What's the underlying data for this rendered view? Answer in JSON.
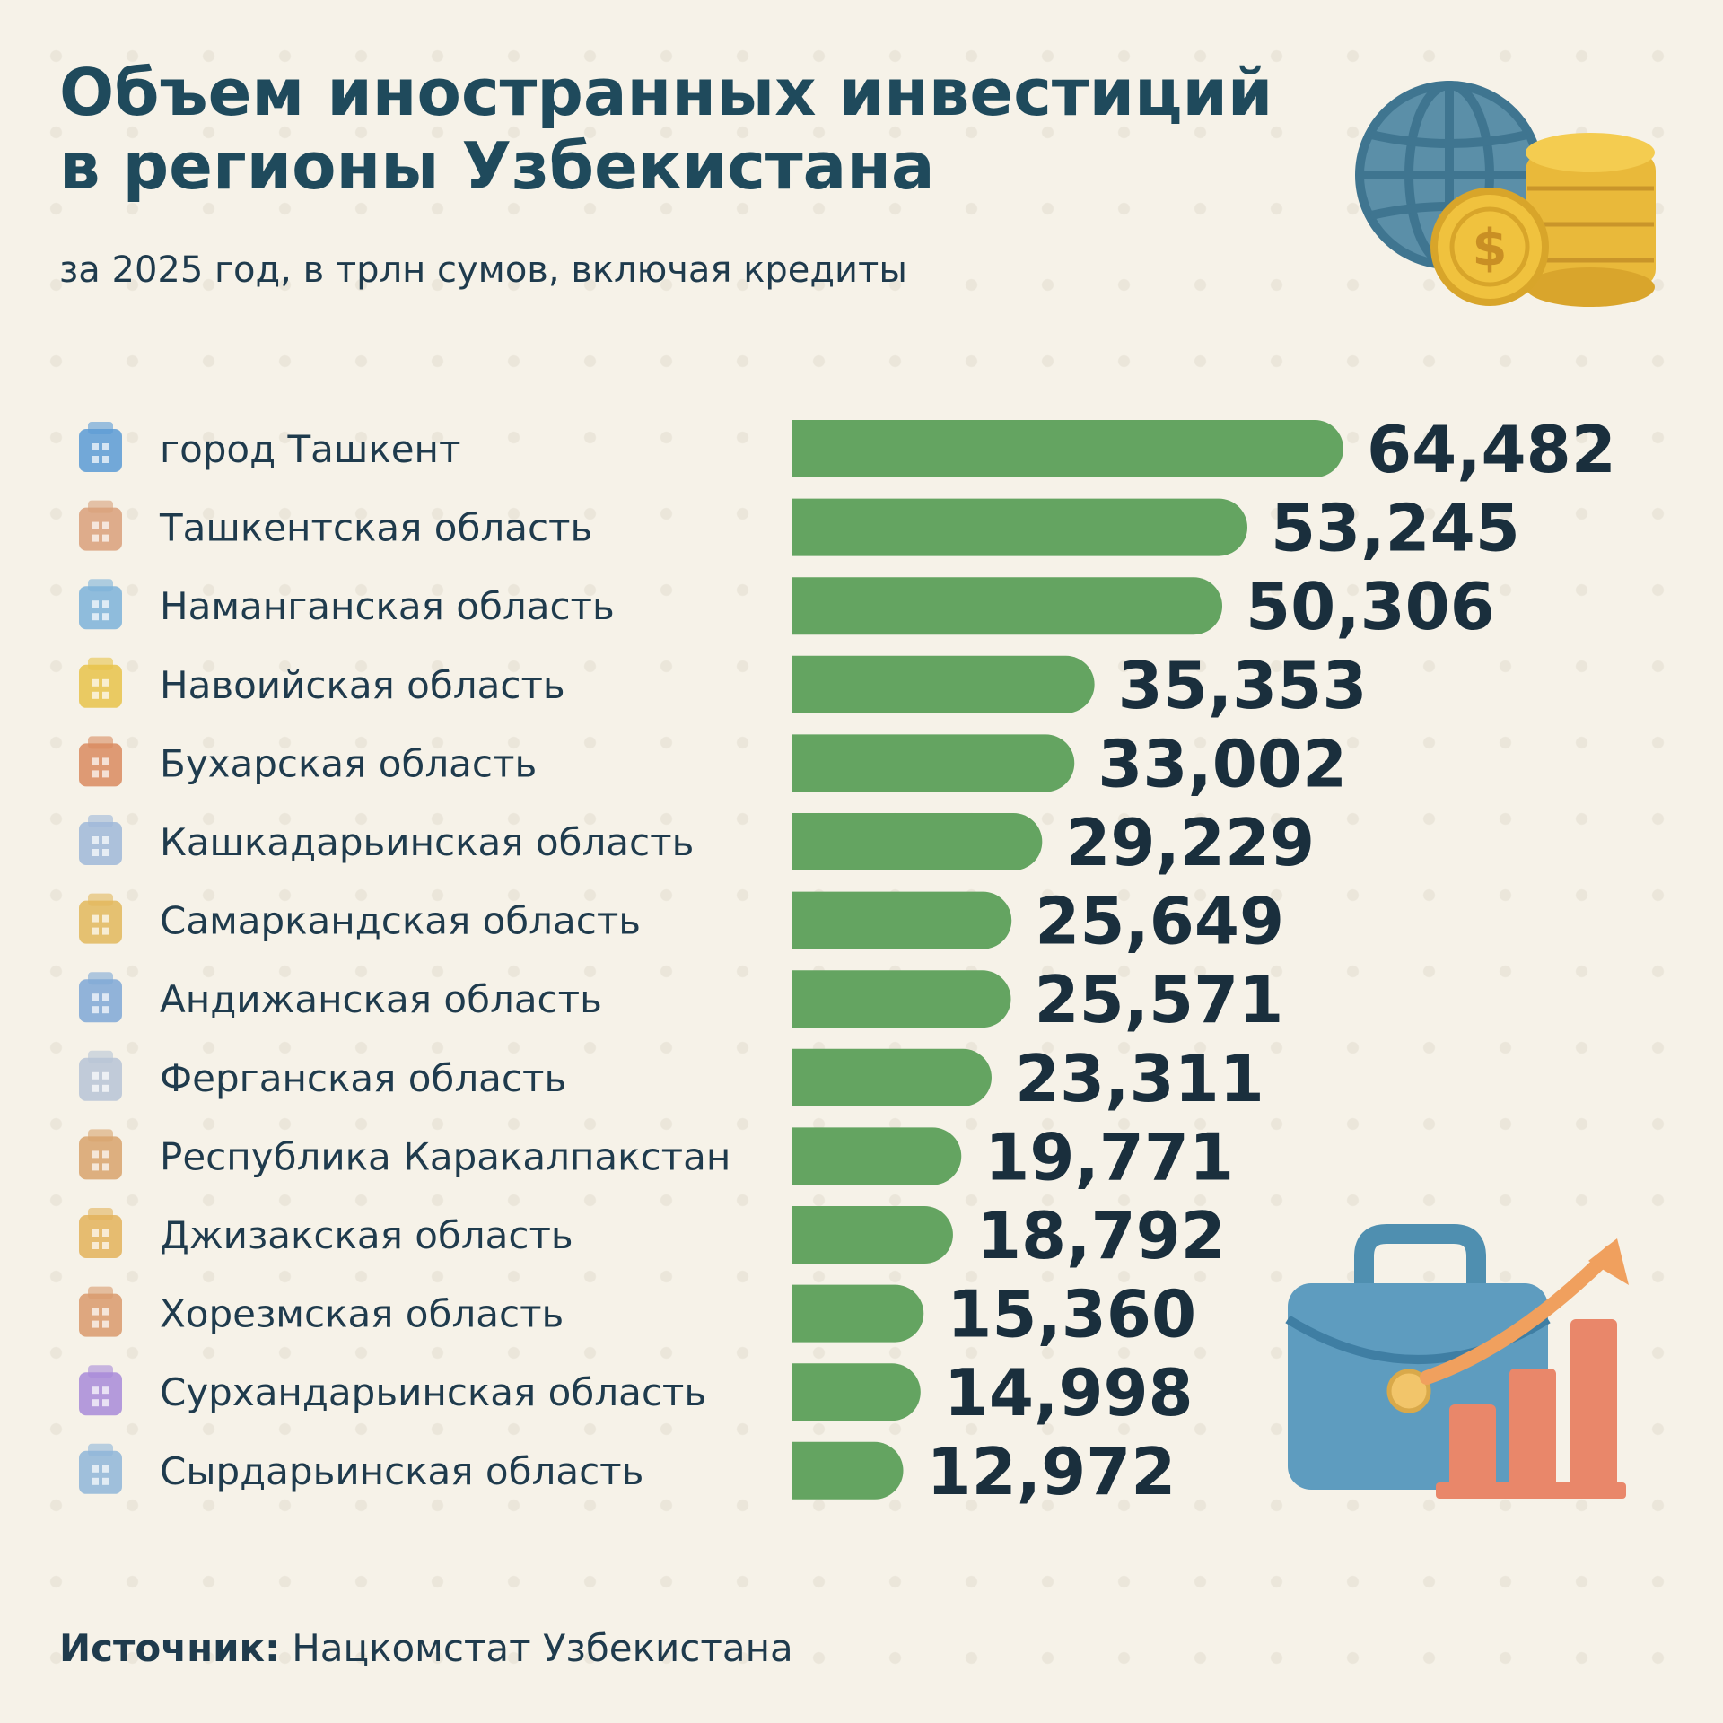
{
  "colors": {
    "background": "#f6f2e8",
    "bar": "#64a461",
    "title": "#1f4a5c",
    "value_text": "#1a2f3d"
  },
  "header": {
    "title": "Объем иностранных инвестиций в регионы Узбекистана",
    "subtitle": "за 2025 год, в трлн сумов, включая кредиты"
  },
  "footer": {
    "source_label": "Источник:",
    "source_value": "Нацкомстат Узбекистана"
  },
  "decor": {
    "top_illustration": "globe-and-coins-icon",
    "bottom_illustration": "briefcase-growth-chart-icon"
  },
  "chart_data": {
    "type": "bar",
    "orientation": "horizontal",
    "categories": [
      "город Ташкент",
      "Ташкентская область",
      "Наманганская область",
      "Навоийская область",
      "Бухарская область",
      "Кашкадарьинская область",
      "Самаркандская область",
      "Андижанская область",
      "Ферганская область",
      "Республика Каракалпакстан",
      "Джизакская область",
      "Хорезмская область",
      "Сурхандарьинская область",
      "Сырдарьинская область"
    ],
    "values": [
      64.482,
      53.245,
      50.306,
      35.353,
      33.002,
      29.229,
      25.649,
      25.571,
      23.311,
      19.771,
      18.792,
      15.36,
      14.998,
      12.972
    ],
    "value_labels": [
      "64,482",
      "53,245",
      "50,306",
      "35,353",
      "33,002",
      "29,229",
      "25,649",
      "25,571",
      "23,311",
      "19,771",
      "18,792",
      "15,360",
      "14,998",
      "12,972"
    ],
    "icons": [
      "skyscraper-icon",
      "factory-icon",
      "thread-spool-icon",
      "gold-bar-icon",
      "minaret-icon",
      "oil-derrick-icon",
      "registan-icon",
      "car-factory-icon",
      "industrial-plant-icon",
      "fortress-icon",
      "wheat-factory-icon",
      "city-wall-icon",
      "grapes-icon",
      "cotton-building-icon"
    ],
    "icon_colors": [
      "#5b9bd5",
      "#d9a07a",
      "#7db3d9",
      "#e8c34a",
      "#d98b5f",
      "#9fb8d8",
      "#e2b85c",
      "#7fa8d6",
      "#b7c4d6",
      "#d8a36c",
      "#e3b35a",
      "#d99a6c",
      "#a88bd8",
      "#8fb6d8"
    ],
    "xlim": [
      0,
      64.482
    ]
  }
}
